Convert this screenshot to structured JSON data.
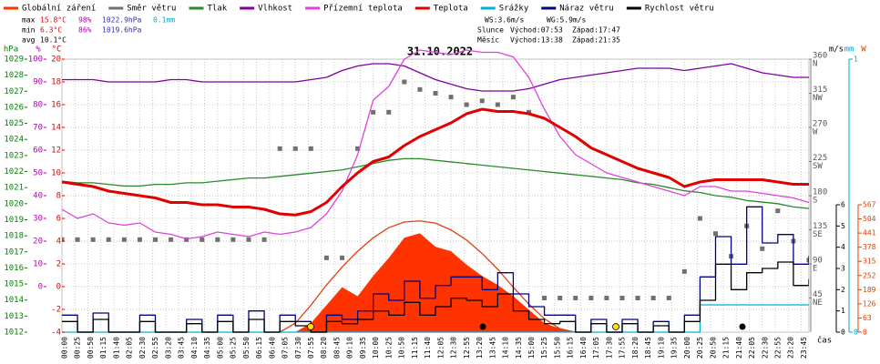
{
  "chart_data": {
    "type": "line",
    "title": "31.10.2022",
    "xlabel": "čas",
    "xlim": [
      0,
      1440
    ],
    "xticks": [
      {
        "value": 0,
        "label": "00:00"
      },
      {
        "value": 25,
        "label": "00:25"
      },
      {
        "value": 50,
        "label": "00:50"
      },
      {
        "value": 75,
        "label": "01:15"
      },
      {
        "value": 100,
        "label": "01:40"
      },
      {
        "value": 125,
        "label": "02:05"
      },
      {
        "value": 150,
        "label": "02:30"
      },
      {
        "value": 175,
        "label": "02:55"
      },
      {
        "value": 200,
        "label": "03:20"
      },
      {
        "value": 225,
        "label": "03:45"
      },
      {
        "value": 250,
        "label": "04:10"
      },
      {
        "value": 275,
        "label": "04:35"
      },
      {
        "value": 300,
        "label": "05:00"
      },
      {
        "value": 325,
        "label": "05:25"
      },
      {
        "value": 350,
        "label": "05:50"
      },
      {
        "value": 375,
        "label": "06:15"
      },
      {
        "value": 400,
        "label": "06:40"
      },
      {
        "value": 425,
        "label": "07:05"
      },
      {
        "value": 450,
        "label": "07:30"
      },
      {
        "value": 475,
        "label": "07:55"
      },
      {
        "value": 500,
        "label": "08:20"
      },
      {
        "value": 525,
        "label": "08:45"
      },
      {
        "value": 550,
        "label": "09:10"
      },
      {
        "value": 575,
        "label": "09:35"
      },
      {
        "value": 600,
        "label": "10:00"
      },
      {
        "value": 625,
        "label": "10:25"
      },
      {
        "value": 650,
        "label": "10:50"
      },
      {
        "value": 675,
        "label": "11:15"
      },
      {
        "value": 700,
        "label": "11:40"
      },
      {
        "value": 725,
        "label": "12:05"
      },
      {
        "value": 750,
        "label": "12:30"
      },
      {
        "value": 775,
        "label": "12:55"
      },
      {
        "value": 800,
        "label": "13:20"
      },
      {
        "value": 825,
        "label": "13:45"
      },
      {
        "value": 850,
        "label": "14:10"
      },
      {
        "value": 875,
        "label": "14:35"
      },
      {
        "value": 900,
        "label": "15:00"
      },
      {
        "value": 925,
        "label": "15:25"
      },
      {
        "value": 950,
        "label": "15:50"
      },
      {
        "value": 975,
        "label": "16:15"
      },
      {
        "value": 1000,
        "label": "16:40"
      },
      {
        "value": 1025,
        "label": "17:05"
      },
      {
        "value": 1050,
        "label": "17:30"
      },
      {
        "value": 1075,
        "label": "17:55"
      },
      {
        "value": 1100,
        "label": "18:20"
      },
      {
        "value": 1125,
        "label": "18:45"
      },
      {
        "value": 1150,
        "label": "19:10"
      },
      {
        "value": 1175,
        "label": "19:35"
      },
      {
        "value": 1200,
        "label": "20:00"
      },
      {
        "value": 1225,
        "label": "20:25"
      },
      {
        "value": 1250,
        "label": "20:50"
      },
      {
        "value": 1275,
        "label": "21:15"
      },
      {
        "value": 1300,
        "label": "21:40"
      },
      {
        "value": 1325,
        "label": "22:05"
      },
      {
        "value": 1350,
        "label": "22:30"
      },
      {
        "value": 1375,
        "label": "22:55"
      },
      {
        "value": 1400,
        "label": "23:20"
      },
      {
        "value": 1425,
        "label": "23:45"
      }
    ],
    "grid": true,
    "x": [
      0,
      30,
      60,
      90,
      120,
      150,
      180,
      210,
      240,
      270,
      300,
      330,
      360,
      390,
      420,
      450,
      480,
      510,
      540,
      570,
      600,
      630,
      660,
      690,
      720,
      750,
      780,
      810,
      840,
      870,
      900,
      930,
      960,
      990,
      1020,
      1050,
      1080,
      1110,
      1140,
      1170,
      1200,
      1230,
      1260,
      1290,
      1320,
      1350,
      1380,
      1410,
      1440
    ],
    "axes": [
      {
        "id": "pressure",
        "side": "left",
        "label": "hPa",
        "color": "#008000",
        "lim": [
          1012,
          1029
        ],
        "ticks": [
          1012,
          1013,
          1014,
          1015,
          1016,
          1017,
          1018,
          1019,
          1020,
          1021,
          1022,
          1023,
          1024,
          1025,
          1026,
          1027,
          1028,
          1029
        ]
      },
      {
        "id": "humidity",
        "side": "left",
        "label": "%",
        "color": "#b000b0",
        "lim": [
          -20,
          100
        ],
        "ticks": [
          0,
          10,
          20,
          30,
          40,
          50,
          60,
          70,
          80,
          90,
          100
        ]
      },
      {
        "id": "temp",
        "side": "left",
        "label": "°C",
        "color": "#e00000",
        "lim": [
          -4,
          20
        ],
        "ticks": [
          -4,
          -2,
          0,
          2,
          4,
          6,
          8,
          10,
          12,
          14,
          16,
          18,
          20
        ]
      },
      {
        "id": "direction",
        "side": "right",
        "color": "#808080",
        "lim": [
          0,
          360
        ],
        "ticks": [
          {
            "value": 45,
            "label": "45",
            "compass": "NE"
          },
          {
            "value": 90,
            "label": "90",
            "compass": "E"
          },
          {
            "value": 135,
            "label": "135",
            "compass": "SE"
          },
          {
            "value": 180,
            "label": "180",
            "compass": "S"
          },
          {
            "value": 225,
            "label": "225",
            "compass": "SW"
          },
          {
            "value": 270,
            "label": "270",
            "compass": "W"
          },
          {
            "value": 315,
            "label": "315",
            "compass": "NW"
          },
          {
            "value": 360,
            "label": "360",
            "compass": "N"
          }
        ]
      },
      {
        "id": "wind",
        "side": "right",
        "label": "m/s",
        "color": "#000000",
        "lim": [
          0,
          6
        ],
        "ticks": [
          0,
          1,
          2,
          3,
          4,
          5,
          6
        ]
      },
      {
        "id": "precip",
        "side": "right",
        "label": "mm",
        "color": "#00a8d0",
        "lim": [
          0,
          1
        ],
        "ticks": [
          0,
          1
        ]
      },
      {
        "id": "radiation",
        "side": "right",
        "label": "W",
        "color": "#e04000",
        "lim": [
          0,
          567
        ],
        "ticks": [
          0,
          63,
          126,
          189,
          252,
          315,
          378,
          441,
          504,
          567
        ]
      }
    ],
    "series": [
      {
        "name": "Globální záření",
        "color": "#ff3300",
        "axis": "radiation",
        "style": "area",
        "values": [
          null,
          null,
          null,
          null,
          null,
          null,
          null,
          null,
          null,
          null,
          null,
          null,
          null,
          null,
          null,
          0,
          40,
          120,
          200,
          160,
          250,
          330,
          420,
          440,
          380,
          360,
          300,
          250,
          210,
          160,
          100,
          40,
          15,
          0,
          null,
          null,
          null,
          null,
          null,
          null,
          null,
          null,
          null,
          null,
          null,
          null,
          null,
          null,
          null
        ]
      },
      {
        "color": "#e04010",
        "axis": "radiation",
        "style": "line",
        "values": [
          null,
          null,
          null,
          null,
          null,
          null,
          null,
          null,
          null,
          null,
          null,
          null,
          null,
          null,
          0,
          40,
          120,
          210,
          290,
          360,
          420,
          465,
          490,
          495,
          485,
          455,
          410,
          350,
          280,
          200,
          125,
          60,
          15,
          0,
          null,
          null,
          null,
          null,
          null,
          null,
          null,
          null,
          null,
          null,
          null,
          null,
          null,
          null,
          null
        ]
      },
      {
        "name": "Směr větru",
        "color": "#707070",
        "axis": "direction",
        "style": "points",
        "values": [
          122,
          122,
          122,
          122,
          122,
          122,
          122,
          122,
          122,
          122,
          122,
          122,
          122,
          122,
          242,
          242,
          242,
          98,
          98,
          242,
          290,
          290,
          330,
          320,
          315,
          310,
          300,
          305,
          300,
          310,
          290,
          45,
          45,
          45,
          45,
          45,
          45,
          45,
          45,
          45,
          80,
          150,
          130,
          100,
          140,
          110,
          160,
          120,
          95
        ]
      },
      {
        "name": "Tlak",
        "color": "#2a8a2a",
        "axis": "pressure",
        "style": "line",
        "values": [
          1021.4,
          1021.3,
          1021.3,
          1021.2,
          1021.1,
          1021.1,
          1021.2,
          1021.2,
          1021.3,
          1021.3,
          1021.4,
          1021.5,
          1021.6,
          1021.6,
          1021.7,
          1021.8,
          1021.9,
          1022.0,
          1022.1,
          1022.3,
          1022.5,
          1022.7,
          1022.8,
          1022.8,
          1022.7,
          1022.6,
          1022.5,
          1022.4,
          1022.3,
          1022.2,
          1022.1,
          1022.0,
          1021.9,
          1021.8,
          1021.7,
          1021.6,
          1021.5,
          1021.3,
          1021.2,
          1021.0,
          1020.8,
          1020.7,
          1020.5,
          1020.4,
          1020.2,
          1020.1,
          1020.0,
          1019.8,
          1019.7
        ]
      },
      {
        "name": "Vlhkost",
        "color": "#8000a0",
        "axis": "humidity",
        "style": "line",
        "values": [
          91,
          91,
          91,
          90,
          90,
          90,
          90,
          91,
          91,
          90,
          90,
          90,
          90,
          90,
          90,
          90,
          91,
          92,
          95,
          97,
          98,
          98,
          97,
          94,
          91,
          89,
          87,
          86,
          86,
          86,
          87,
          89,
          91,
          92,
          93,
          94,
          95,
          96,
          96,
          96,
          95,
          96,
          97,
          98,
          96,
          94,
          93,
          92,
          92
        ]
      },
      {
        "name": "Přízemní teplota",
        "color": "#e040e0",
        "axis": "temp",
        "style": "line",
        "values": [
          6.8,
          6.0,
          6.4,
          5.6,
          5.4,
          5.6,
          4.8,
          4.6,
          4.2,
          4.4,
          4.8,
          4.6,
          4.4,
          4.8,
          4.6,
          4.8,
          5.2,
          6.4,
          8.4,
          11.6,
          16.4,
          17.6,
          20.0,
          20.8,
          20.6,
          20.4,
          20.8,
          20.6,
          20.6,
          20.2,
          18.4,
          15.6,
          13.2,
          11.6,
          10.8,
          10.0,
          9.6,
          9.2,
          8.8,
          8.4,
          8.0,
          8.8,
          8.8,
          8.4,
          8.4,
          8.2,
          8.0,
          7.8,
          7.4
        ]
      },
      {
        "name": "Teplota",
        "color": "#e00000",
        "axis": "temp",
        "style": "thick",
        "values": [
          9.2,
          9.0,
          8.8,
          8.4,
          8.2,
          8.0,
          7.8,
          7.4,
          7.4,
          7.2,
          7.2,
          7.0,
          7.0,
          6.8,
          6.4,
          6.3,
          6.6,
          7.4,
          8.8,
          10.0,
          11.0,
          11.4,
          12.4,
          13.2,
          13.8,
          14.4,
          15.2,
          15.6,
          15.4,
          15.4,
          15.2,
          14.8,
          14.0,
          13.2,
          12.2,
          11.6,
          11.0,
          10.4,
          10.0,
          9.6,
          8.8,
          9.2,
          9.4,
          9.4,
          9.4,
          9.4,
          9.2,
          9.0,
          9.0
        ]
      },
      {
        "name": "Srážky",
        "color": "#00b0d8",
        "axis": "precip",
        "style": "step",
        "values": [
          0,
          0,
          0,
          0,
          0,
          0,
          0,
          0,
          0,
          0,
          0,
          0,
          0,
          0,
          0,
          0,
          0,
          0,
          0,
          0,
          0,
          0,
          0,
          0,
          0,
          0,
          0,
          0,
          0,
          0,
          0,
          0,
          0,
          0,
          0,
          0,
          0,
          0,
          0,
          0,
          0,
          0.1,
          0.1,
          0.1,
          0.1,
          0.1,
          0.1,
          0.1,
          0.1
        ]
      },
      {
        "name": "Náraz větru",
        "color": "#000080",
        "axis": "wind",
        "style": "step",
        "values": [
          0.8,
          0,
          0.9,
          0,
          0,
          0.8,
          0,
          0,
          0.6,
          0,
          0.8,
          0,
          1.0,
          0,
          0.8,
          0.5,
          0,
          0.8,
          0.6,
          1.0,
          1.8,
          1.5,
          2.4,
          1.6,
          2.2,
          2.6,
          2.6,
          2.0,
          2.8,
          1.8,
          1.2,
          0.8,
          0.8,
          0,
          0.6,
          0,
          0.6,
          0,
          0.5,
          0,
          0.8,
          2.6,
          4.5,
          3.2,
          5.9,
          4.2,
          4.6,
          3.2,
          3.6
        ]
      },
      {
        "name": "Rychlost větru",
        "color": "#000000",
        "axis": "wind",
        "style": "step",
        "values": [
          0.5,
          0,
          0.6,
          0,
          0,
          0.5,
          0,
          0,
          0.4,
          0,
          0.5,
          0,
          0.6,
          0,
          0.5,
          0.3,
          0,
          0.5,
          0.4,
          0.6,
          1.0,
          0.8,
          1.4,
          0.8,
          1.2,
          1.6,
          1.5,
          1.2,
          1.8,
          1.0,
          0.6,
          0.4,
          0.5,
          0,
          0.4,
          0,
          0.4,
          0,
          0.3,
          0,
          0.5,
          1.5,
          3.2,
          2.0,
          2.8,
          3.0,
          3.3,
          2.2,
          2.5
        ]
      }
    ],
    "stats": [
      [
        {
          "text": "max",
          "color": "#000"
        },
        {
          "text": "15.8°C",
          "color": "#e00000"
        },
        {
          "text": "98%",
          "color": "#b000b0"
        },
        {
          "text": "1022.9hPa",
          "color": "#3030a0"
        },
        {
          "text": "0.1mm",
          "color": "#00a8d0"
        }
      ],
      [
        {
          "text": "min",
          "color": "#000"
        },
        {
          "text": "6.3°C",
          "color": "#e00000"
        },
        {
          "text": "86%",
          "color": "#b000b0"
        },
        {
          "text": "1019.6hPa",
          "color": "#3030a0"
        }
      ],
      [
        {
          "text": "avg",
          "color": "#000"
        },
        {
          "text": "10.1°C",
          "color": "#000"
        }
      ]
    ],
    "info": [
      [
        "WS:3.6m/s",
        "WG:5.9m/s"
      ],
      [
        "Slunce",
        "Východ:07:53",
        "Západ:17:47"
      ],
      [
        "Měsíc",
        "Východ:13:38",
        "Západ:21:35"
      ]
    ]
  }
}
